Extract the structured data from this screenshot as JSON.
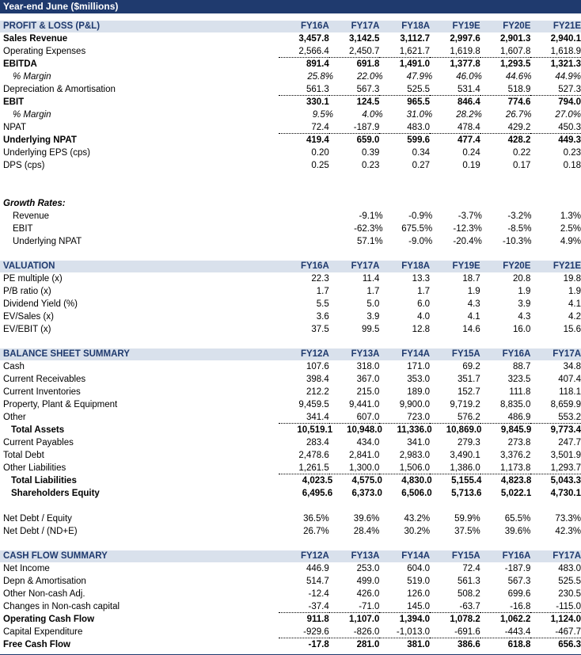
{
  "title": "Year-end June ($millions)",
  "pl": {
    "header": "PROFIT & LOSS (P&L)",
    "years": [
      "FY16A",
      "FY17A",
      "FY18A",
      "FY19E",
      "FY20E",
      "FY21E"
    ],
    "rows": [
      {
        "label": "Sales Revenue",
        "values": [
          "3,457.8",
          "3,142.5",
          "3,112.7",
          "2,997.6",
          "2,901.3",
          "2,940.1"
        ],
        "style": "bold"
      },
      {
        "label": "Operating Expenses",
        "values": [
          "2,566.4",
          "2,450.7",
          "1,621.7",
          "1,619.8",
          "1,607.8",
          "1,618.9"
        ],
        "style": "dotbottom"
      },
      {
        "label": "EBITDA",
        "values": [
          "891.4",
          "691.8",
          "1,491.0",
          "1,377.8",
          "1,293.5",
          "1,321.3"
        ],
        "style": "bold"
      },
      {
        "label": "% Margin",
        "values": [
          "25.8%",
          "22.0%",
          "47.9%",
          "46.0%",
          "44.6%",
          "44.9%"
        ],
        "style": "italic"
      },
      {
        "label": "Depreciation & Amortisation",
        "values": [
          "561.3",
          "567.3",
          "525.5",
          "531.4",
          "518.9",
          "527.3"
        ],
        "style": "dotbottom"
      },
      {
        "label": "EBIT",
        "values": [
          "330.1",
          "124.5",
          "965.5",
          "846.4",
          "774.6",
          "794.0"
        ],
        "style": "bold"
      },
      {
        "label": "% Margin",
        "values": [
          "9.5%",
          "4.0%",
          "31.0%",
          "28.2%",
          "26.7%",
          "27.0%"
        ],
        "style": "italic"
      },
      {
        "label": "NPAT",
        "values": [
          "72.4",
          "-187.9",
          "483.0",
          "478.4",
          "429.2",
          "450.3"
        ],
        "style": "dotbottom"
      },
      {
        "label": "Underlying NPAT",
        "values": [
          "419.4",
          "659.0",
          "599.6",
          "477.4",
          "428.2",
          "449.3"
        ],
        "style": "bold"
      },
      {
        "label": "Underlying EPS (cps)",
        "values": [
          "0.20",
          "0.39",
          "0.34",
          "0.24",
          "0.22",
          "0.23"
        ],
        "style": ""
      },
      {
        "label": "DPS (cps)",
        "values": [
          "0.25",
          "0.23",
          "0.27",
          "0.19",
          "0.17",
          "0.18"
        ],
        "style": ""
      }
    ]
  },
  "growth": {
    "title": "Growth Rates:",
    "rows": [
      {
        "label": "Revenue",
        "values": [
          "",
          "-9.1%",
          "-0.9%",
          "-3.7%",
          "-3.2%",
          "1.3%"
        ]
      },
      {
        "label": "EBIT",
        "values": [
          "",
          "-62.3%",
          "675.5%",
          "-12.3%",
          "-8.5%",
          "2.5%"
        ]
      },
      {
        "label": "Underlying NPAT",
        "values": [
          "",
          "57.1%",
          "-9.0%",
          "-20.4%",
          "-10.3%",
          "4.9%"
        ]
      }
    ]
  },
  "valuation": {
    "header": "VALUATION",
    "years": [
      "FY16A",
      "FY17A",
      "FY18A",
      "FY19E",
      "FY20E",
      "FY21E"
    ],
    "rows": [
      {
        "label": "PE multiple (x)",
        "values": [
          "22.3",
          "11.4",
          "13.3",
          "18.7",
          "20.8",
          "19.8"
        ]
      },
      {
        "label": "P/B ratio (x)",
        "values": [
          "1.7",
          "1.7",
          "1.7",
          "1.9",
          "1.9",
          "1.9"
        ]
      },
      {
        "label": "Dividend Yield (%)",
        "values": [
          "5.5",
          "5.0",
          "6.0",
          "4.3",
          "3.9",
          "4.1"
        ]
      },
      {
        "label": "EV/Sales (x)",
        "values": [
          "3.6",
          "3.9",
          "4.0",
          "4.1",
          "4.3",
          "4.2"
        ]
      },
      {
        "label": "EV/EBIT (x)",
        "values": [
          "37.5",
          "99.5",
          "12.8",
          "14.6",
          "16.0",
          "15.6"
        ]
      }
    ]
  },
  "balance": {
    "header": "BALANCE SHEET SUMMARY",
    "years": [
      "FY12A",
      "FY13A",
      "FY14A",
      "FY15A",
      "FY16A",
      "FY17A"
    ],
    "rows": [
      {
        "label": "Cash",
        "values": [
          "107.6",
          "318.0",
          "171.0",
          "69.2",
          "88.7",
          "34.8"
        ],
        "style": ""
      },
      {
        "label": "Current Receivables",
        "values": [
          "398.4",
          "367.0",
          "353.0",
          "351.7",
          "323.5",
          "407.4"
        ],
        "style": ""
      },
      {
        "label": "Current Inventories",
        "values": [
          "212.2",
          "215.0",
          "189.0",
          "152.7",
          "111.8",
          "118.1"
        ],
        "style": ""
      },
      {
        "label": "Property, Plant & Equipment",
        "values": [
          "9,459.5",
          "9,441.0",
          "9,900.0",
          "9,719.2",
          "8,835.0",
          "8,659.9"
        ],
        "style": ""
      },
      {
        "label": "Other",
        "values": [
          "341.4",
          "607.0",
          "723.0",
          "576.2",
          "486.9",
          "553.2"
        ],
        "style": "dotbottom"
      },
      {
        "label": "Total Assets",
        "values": [
          "10,519.1",
          "10,948.0",
          "11,336.0",
          "10,869.0",
          "9,845.9",
          "9,773.4"
        ],
        "style": "boldindent"
      },
      {
        "label": "Current Payables",
        "values": [
          "283.4",
          "434.0",
          "341.0",
          "279.3",
          "273.8",
          "247.7"
        ],
        "style": ""
      },
      {
        "label": "Total Debt",
        "values": [
          "2,478.6",
          "2,841.0",
          "2,983.0",
          "3,490.1",
          "3,376.2",
          "3,501.9"
        ],
        "style": ""
      },
      {
        "label": "Other Liabilities",
        "values": [
          "1,261.5",
          "1,300.0",
          "1,506.0",
          "1,386.0",
          "1,173.8",
          "1,293.7"
        ],
        "style": "dotbottom"
      },
      {
        "label": "Total Liabilities",
        "values": [
          "4,023.5",
          "4,575.0",
          "4,830.0",
          "5,155.4",
          "4,823.8",
          "5,043.3"
        ],
        "style": "boldindent"
      },
      {
        "label": "Shareholders Equity",
        "values": [
          "6,495.6",
          "6,373.0",
          "6,506.0",
          "5,713.6",
          "5,022.1",
          "4,730.1"
        ],
        "style": "boldindent"
      }
    ]
  },
  "debt": {
    "rows": [
      {
        "label": "Net Debt / Equity",
        "values": [
          "36.5%",
          "39.6%",
          "43.2%",
          "59.9%",
          "65.5%",
          "73.3%"
        ]
      },
      {
        "label": "Net Debt / (ND+E)",
        "values": [
          "26.7%",
          "28.4%",
          "30.2%",
          "37.5%",
          "39.6%",
          "42.3%"
        ]
      }
    ]
  },
  "cashflow": {
    "header": "CASH FLOW SUMMARY",
    "years": [
      "FY12A",
      "FY13A",
      "FY14A",
      "FY15A",
      "FY16A",
      "FY17A"
    ],
    "rows": [
      {
        "label": "Net Income",
        "values": [
          "446.9",
          "253.0",
          "604.0",
          "72.4",
          "-187.9",
          "483.0"
        ],
        "style": ""
      },
      {
        "label": "Depn & Amortisation",
        "values": [
          "514.7",
          "499.0",
          "519.0",
          "561.3",
          "567.3",
          "525.5"
        ],
        "style": ""
      },
      {
        "label": "Other Non-cash Adj.",
        "values": [
          "-12.4",
          "426.0",
          "126.0",
          "508.2",
          "699.6",
          "230.5"
        ],
        "style": ""
      },
      {
        "label": "Changes in Non-cash capital",
        "values": [
          "-37.4",
          "-71.0",
          "145.0",
          "-63.7",
          "-16.8",
          "-115.0"
        ],
        "style": "dotbottom"
      },
      {
        "label": "Operating Cash Flow",
        "values": [
          "911.8",
          "1,107.0",
          "1,394.0",
          "1,078.2",
          "1,062.2",
          "1,124.0"
        ],
        "style": "bold"
      },
      {
        "label": "Capital Expenditure",
        "values": [
          "-929.6",
          "-826.0",
          "-1,013.0",
          "-691.6",
          "-443.4",
          "-467.7"
        ],
        "style": "dotbottom"
      },
      {
        "label": "Free Cash Flow",
        "values": [
          "-17.8",
          "281.0",
          "381.0",
          "386.6",
          "618.8",
          "656.3"
        ],
        "style": "bold"
      }
    ]
  }
}
